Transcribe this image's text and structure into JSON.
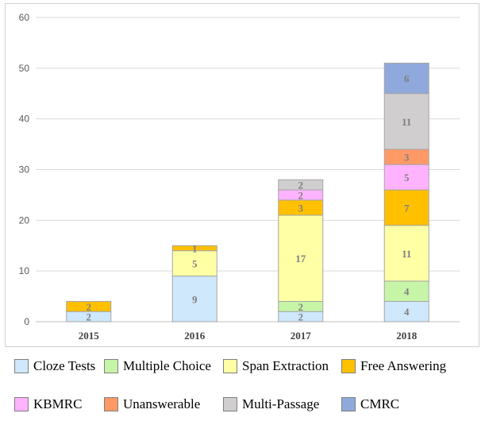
{
  "chart_data": {
    "type": "bar",
    "stacked": true,
    "categories": [
      "2015",
      "2016",
      "2017",
      "2018"
    ],
    "ylim": [
      0,
      60
    ],
    "yticks": [
      0,
      10,
      20,
      30,
      40,
      50,
      60
    ],
    "grid": true,
    "legend_position": "bottom",
    "title": "",
    "xlabel": "",
    "ylabel": "",
    "series": [
      {
        "name": "Cloze Tests",
        "color": "#cfe8fb",
        "values": [
          2,
          9,
          2,
          4
        ]
      },
      {
        "name": "Multiple Choice",
        "color": "#c7f5a8",
        "values": [
          0,
          0,
          2,
          4
        ]
      },
      {
        "name": "Span Extraction",
        "color": "#ffffa6",
        "values": [
          0,
          5,
          17,
          11
        ]
      },
      {
        "name": "Free Answering",
        "color": "#ffc000",
        "values": [
          2,
          1,
          3,
          7
        ]
      },
      {
        "name": "KBMRC",
        "color": "#ffb3ff",
        "values": [
          0,
          0,
          2,
          5
        ]
      },
      {
        "name": "Unanswerable",
        "color": "#ff9966",
        "values": [
          0,
          0,
          0,
          3
        ]
      },
      {
        "name": "Multi-Passage",
        "color": "#d0cece",
        "values": [
          0,
          0,
          2,
          11
        ]
      },
      {
        "name": "CMRC",
        "color": "#8fa9dc",
        "values": [
          0,
          0,
          0,
          6
        ]
      }
    ]
  }
}
